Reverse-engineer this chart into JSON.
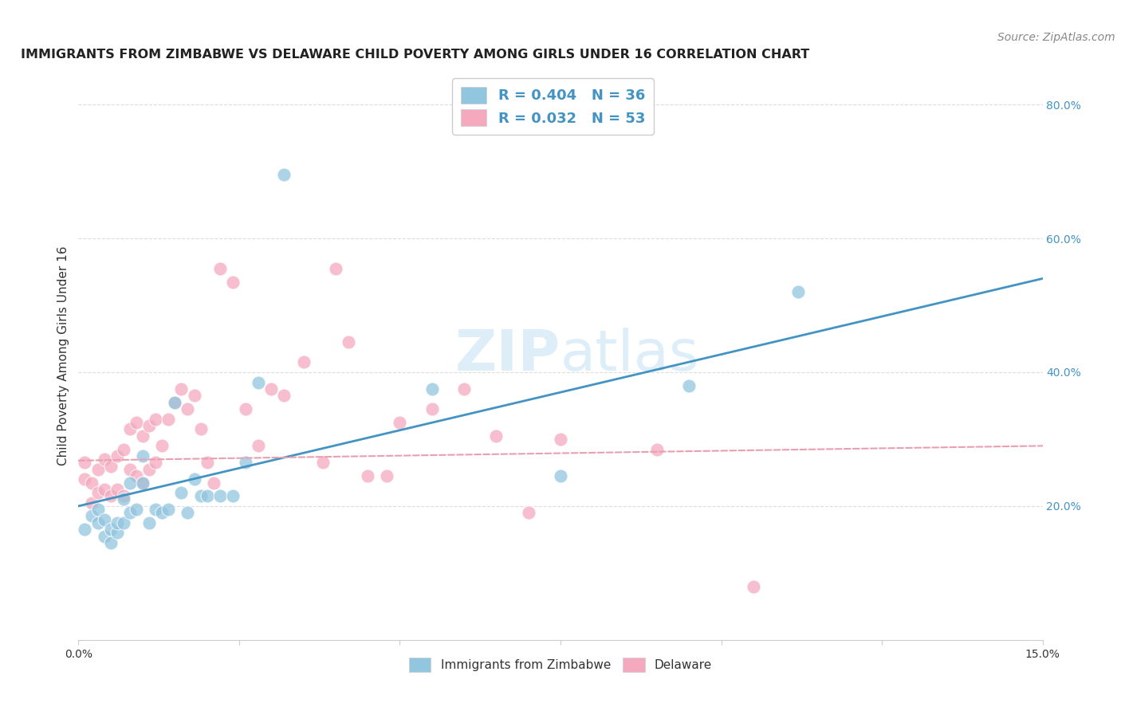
{
  "title": "IMMIGRANTS FROM ZIMBABWE VS DELAWARE CHILD POVERTY AMONG GIRLS UNDER 16 CORRELATION CHART",
  "source": "Source: ZipAtlas.com",
  "ylabel": "Child Poverty Among Girls Under 16",
  "xlim": [
    0.0,
    0.15
  ],
  "ylim": [
    0.0,
    0.85
  ],
  "xticks": [
    0.0,
    0.025,
    0.05,
    0.075,
    0.1,
    0.125,
    0.15
  ],
  "xtick_labels": [
    "0.0%",
    "",
    "",
    "",
    "",
    "",
    "15.0%"
  ],
  "yticks_right": [
    0.2,
    0.4,
    0.6,
    0.8
  ],
  "ytick_labels_right": [
    "20.0%",
    "40.0%",
    "60.0%",
    "80.0%"
  ],
  "legend1_label": "R = 0.404   N = 36",
  "legend2_label": "R = 0.032   N = 53",
  "blue_color": "#92c5de",
  "pink_color": "#f4a9be",
  "blue_line_color": "#4393c3",
  "pink_line_color": "#d6604d",
  "pink_line_color2": "#e8a0b0",
  "watermark_color": "#ddeef8",
  "blue_scatter_x": [
    0.001,
    0.002,
    0.003,
    0.003,
    0.004,
    0.004,
    0.005,
    0.005,
    0.006,
    0.006,
    0.007,
    0.007,
    0.008,
    0.008,
    0.009,
    0.01,
    0.01,
    0.011,
    0.012,
    0.013,
    0.014,
    0.015,
    0.016,
    0.017,
    0.018,
    0.019,
    0.02,
    0.022,
    0.024,
    0.026,
    0.028,
    0.032,
    0.055,
    0.075,
    0.095,
    0.112
  ],
  "blue_scatter_y": [
    0.165,
    0.185,
    0.175,
    0.195,
    0.155,
    0.18,
    0.145,
    0.165,
    0.16,
    0.175,
    0.21,
    0.175,
    0.19,
    0.235,
    0.195,
    0.235,
    0.275,
    0.175,
    0.195,
    0.19,
    0.195,
    0.355,
    0.22,
    0.19,
    0.24,
    0.215,
    0.215,
    0.215,
    0.215,
    0.265,
    0.385,
    0.695,
    0.375,
    0.245,
    0.38,
    0.52
  ],
  "pink_scatter_x": [
    0.001,
    0.001,
    0.002,
    0.002,
    0.003,
    0.003,
    0.004,
    0.004,
    0.005,
    0.005,
    0.006,
    0.006,
    0.007,
    0.007,
    0.008,
    0.008,
    0.009,
    0.009,
    0.01,
    0.01,
    0.011,
    0.011,
    0.012,
    0.012,
    0.013,
    0.014,
    0.015,
    0.016,
    0.017,
    0.018,
    0.019,
    0.02,
    0.021,
    0.022,
    0.024,
    0.026,
    0.028,
    0.03,
    0.032,
    0.035,
    0.038,
    0.04,
    0.042,
    0.045,
    0.048,
    0.05,
    0.055,
    0.06,
    0.065,
    0.07,
    0.075,
    0.09,
    0.105
  ],
  "pink_scatter_y": [
    0.24,
    0.265,
    0.205,
    0.235,
    0.22,
    0.255,
    0.225,
    0.27,
    0.215,
    0.26,
    0.225,
    0.275,
    0.215,
    0.285,
    0.255,
    0.315,
    0.245,
    0.325,
    0.235,
    0.305,
    0.255,
    0.32,
    0.265,
    0.33,
    0.29,
    0.33,
    0.355,
    0.375,
    0.345,
    0.365,
    0.315,
    0.265,
    0.235,
    0.555,
    0.535,
    0.345,
    0.29,
    0.375,
    0.365,
    0.415,
    0.265,
    0.555,
    0.445,
    0.245,
    0.245,
    0.325,
    0.345,
    0.375,
    0.305,
    0.19,
    0.3,
    0.285,
    0.08
  ],
  "blue_line_x": [
    0.0,
    0.15
  ],
  "blue_line_y": [
    0.2,
    0.54
  ],
  "pink_line_x": [
    0.0,
    0.15
  ],
  "pink_line_y": [
    0.268,
    0.29
  ],
  "grid_color": "#dddddd",
  "title_fontsize": 11.5,
  "label_fontsize": 11,
  "tick_fontsize": 10,
  "source_fontsize": 10
}
